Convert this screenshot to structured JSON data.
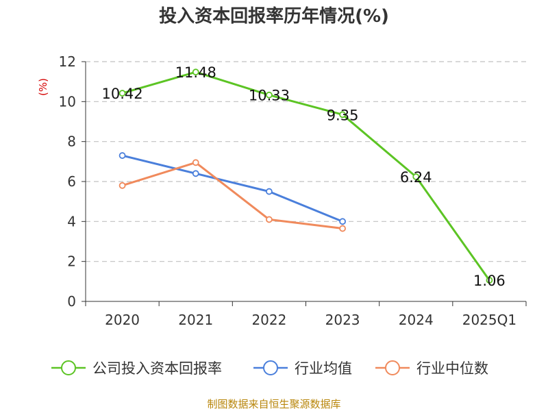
{
  "title": "投入资本回报率历年情况(%)",
  "source_note": "制图数据来自恒生聚源数据库",
  "colors": {
    "company": "#5cc424",
    "industry_avg": "#4a7fdb",
    "industry_median": "#f08a5c",
    "axis": "#333333",
    "grid": "#c0c0c0"
  },
  "chart_data": {
    "type": "line",
    "title": "投入资本回报率历年情况(%)",
    "categories": [
      "2020",
      "2021",
      "2022",
      "2023",
      "2024",
      "2025Q1"
    ],
    "ylabel": "(%)",
    "xlabel": "",
    "ylim": [
      0,
      12
    ],
    "yticks": [
      0,
      2,
      4,
      6,
      8,
      10,
      12
    ],
    "grid": true,
    "legend_position": "bottom",
    "series": [
      {
        "key": "company",
        "name": "公司投入资本回报率",
        "values": [
          10.42,
          11.48,
          10.33,
          9.35,
          6.24,
          1.06
        ],
        "labels": [
          "10.42",
          "11.48",
          "10.33",
          "9.35",
          "6.24",
          "1.06"
        ],
        "show_labels": true
      },
      {
        "key": "industry_avg",
        "name": "行业均值",
        "values": [
          7.3,
          6.4,
          5.5,
          4.0,
          null,
          null
        ],
        "show_labels": false
      },
      {
        "key": "industry_median",
        "name": "行业中位数",
        "values": [
          5.8,
          6.95,
          4.1,
          3.65,
          null,
          null
        ],
        "show_labels": false
      }
    ]
  }
}
